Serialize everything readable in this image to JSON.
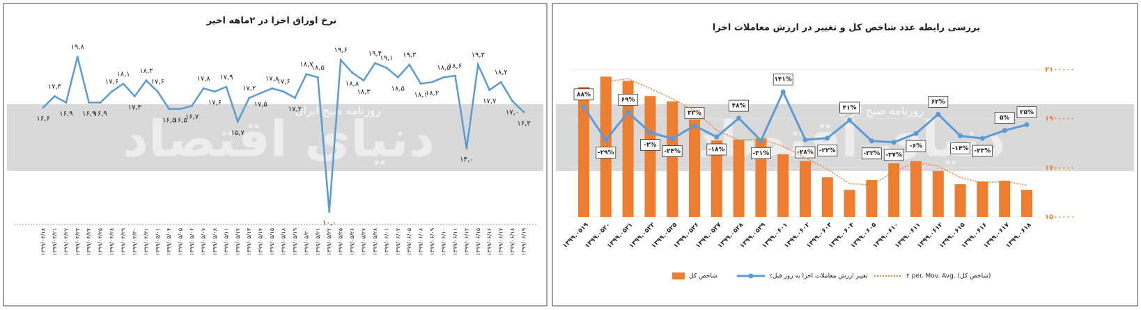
{
  "watermark": {
    "brand": "دنیای اقتصاد",
    "tagline": "روزنامه صبح ایران"
  },
  "chart_data": [
    {
      "type": "line",
      "title": "نرخ اوراق اخزا در ۲ماهه اخیر",
      "categories": [
        "۱۳۹۹/۰۴/۱۸",
        "۱۳۹۹/۰۴/۲۱",
        "۱۳۹۹/۰۴/۲۲",
        "۱۳۹۹/۰۴/۲۳",
        "۱۳۹۹/۰۴/۲۴",
        "۱۳۹۹/۰۴/۲۵",
        "۱۳۹۹/۰۴/۲۸",
        "۱۳۹۹/۰۴/۲۹",
        "۱۳۹۹/۰۴/۳۰",
        "۱۳۹۹/۰۴/۳۱",
        "۱۳۹۹/۰۵/۰۱",
        "۱۳۹۹/۰۵/۰۴",
        "۱۳۹۹/۰۵/۰۵",
        "۱۳۹۹/۰۵/۰۶",
        "۱۳۹۹/۰۵/۰۷",
        "۱۳۹۹/۰۵/۰۸",
        "۱۳۹۹/۰۵/۱۱",
        "۱۳۹۹/۰۵/۱۲",
        "۱۳۹۹/۰۵/۱۳",
        "۱۳۹۹/۰۵/۱۴",
        "۱۳۹۹/۰۵/۱۵",
        "۱۳۹۹/۰۵/۱۸",
        "۱۳۹۹/۰۵/۱۹",
        "۱۳۹۹/۰۵/۲۰",
        "۱۳۹۹/۰۵/۲۱",
        "۱۳۹۹/۰۵/۲۲",
        "۱۳۹۹/۰۵/۲۵",
        "۱۳۹۹/۰۵/۲۶",
        "۱۳۹۹/۰۵/۲۷",
        "۱۳۹۹/۰۵/۲۸",
        "۱۳۹۹/۰۶/۰۱",
        "۱۳۹۹/۰۶/۰۲",
        "۱۳۹۹/۰۶/۰۵",
        "۱۳۹۹/۰۶/۰۸",
        "۱۳۹۹/۰۶/۰۹",
        "۱۳۹۹/۰۶/۱۰",
        "۱۳۹۹/۰۶/۱۱",
        "۱۳۹۹/۰۶/۱۲",
        "۱۳۹۹/۰۶/۱۵",
        "۱۳۹۹/۰۶/۱۶",
        "۱۳۹۹/۰۶/۱۷",
        "۱۳۹۹/۰۶/۱۸",
        "۱۳۹۹/۰۶/۱۹"
      ],
      "values": [
        16.6,
        17.3,
        16.9,
        19.8,
        16.9,
        16.9,
        17.6,
        18.1,
        17.3,
        18.3,
        17.6,
        16.5,
        16.5,
        16.7,
        17.8,
        17.6,
        17.9,
        15.7,
        17.2,
        17.5,
        17.8,
        17.6,
        17.2,
        18.7,
        18.5,
        10.0,
        19.6,
        18.8,
        18.3,
        19.4,
        19.1,
        18.5,
        19.3,
        18.1,
        18.2,
        18.5,
        18.6,
        14.0,
        19.3,
        17.7,
        18.2,
        17.0,
        16.3
      ],
      "value_labels": [
        "۱۶,۶",
        "۱۷,۳",
        "۱۶,۹",
        "۱۹,۸",
        "۱۶,۹",
        "۱۶,۹",
        "۱۷,۶",
        "۱۸,۱",
        "۱۷,۳",
        "۱۸,۳",
        "۱۷,۶",
        "۱۶,۵",
        "۱۶,۵",
        "۱۶,۷",
        "۱۷,۸",
        "۱۷,۶",
        "۱۷,۹",
        "۱۵,۷",
        "۱۷,۲",
        "۱۷,۵",
        "۱۷,۸",
        "۱۷,۶",
        "۱۷,۲",
        "۱۸,۷",
        "۱۸,۵",
        "۱۰,۰",
        "۱۹,۶",
        "۱۸,۸",
        "۱۸,۳",
        "۱۹,۴",
        "۱۹,۱",
        "۱۸,۵",
        "۱۹,۳",
        "۱۸,۱",
        "۱۸,۲",
        "۱۸,۵",
        "۱۸,۶",
        "۱۴,۰",
        "۱۹,۳",
        "۱۷,۷",
        "۱۸,۲",
        "۱۷,۰",
        "۱۶,۳"
      ],
      "color": "#5b9bd5",
      "ylim": [
        9.5,
        21.5
      ]
    },
    {
      "type": "bar",
      "title": "بررسی رابطه عدد شاخص کل و تغییر در ارزش معاملات اخزا",
      "categories": [
        "۱۳۹۹.۰۵۱۹",
        "۱۳۹۹.۰۵۲۰",
        "۱۳۹۹.۰۵۲۱",
        "۱۳۹۹.۰۵۲۲",
        "۱۳۹۹.۰۵۲۵",
        "۱۳۹۹.۰۵۲۶",
        "۱۳۹۹.۰۵۲۷",
        "۱۳۹۹.۰۵۲۸",
        "۱۳۹۹.۰۵۲۹",
        "۱۳۹۹.۰۶۰۱",
        "۱۳۹۹.۰۶۰۲",
        "۱۳۹۹.۰۶۰۳",
        "۱۳۹۹.۰۶۰۴",
        "۱۳۹۹.۰۶۰۵",
        "۱۳۹۹.۰۶۱۰",
        "۱۳۹۹.۰۶۱۱",
        "۱۳۹۹.۰۶۱۲",
        "۱۳۹۹.۰۶۱۵",
        "۱۳۹۹.۰۶۱۶",
        "۱۳۹۹.۰۶۱۷",
        "۱۳۹۹.۰۶۱۸"
      ],
      "series": [
        {
          "name": "شاخص کل",
          "type": "bar",
          "color": "#ed7d31",
          "values": [
            2029000,
            2071000,
            2054000,
            1992000,
            1970000,
            1896000,
            1811000,
            1814000,
            1820000,
            1755000,
            1727000,
            1661000,
            1610000,
            1650000,
            1718000,
            1727000,
            1687000,
            1633000,
            1644000,
            1647000,
            1610000
          ]
        },
        {
          "name": "٪تغییر ارزش معاملات اخزا به روز قبل",
          "type": "line",
          "color": "#5b9bd5",
          "axis": "y2",
          "values": [
            88,
            -29,
            69,
            -2,
            -24,
            22,
            -18,
            48,
            -31,
            141,
            -28,
            -22,
            41,
            -32,
            -37,
            -6,
            62,
            -14,
            -23,
            5,
            25
          ],
          "value_labels": [
            "۸۸%",
            "-۲۹%",
            "۶۹%",
            "-۲%",
            "-۲۴%",
            "۲۲%",
            "-۱۸%",
            "۴۸%",
            "-۳۱%",
            "۱۴۱%",
            "-۲۸%",
            "-۲۲%",
            "۴۱%",
            "-۳۲%",
            "-۳۷%",
            "-۶%",
            "۶۲%",
            "-۱۴%",
            "-۲۳%",
            "۵%",
            "۲۵%"
          ]
        },
        {
          "name": "۲ per. Mov. Avg. (شاخص کل)",
          "type": "line",
          "dash": true,
          "color": "#ed7d31",
          "values": [
            null,
            2050000,
            2062500,
            2023000,
            1981000,
            1933000,
            1853500,
            1812500,
            1817000,
            1787500,
            1741000,
            1694000,
            1635500,
            1630000,
            1684000,
            1722500,
            1707000,
            1660000,
            1638500,
            1645500,
            1628500
          ]
        }
      ],
      "ylim": [
        1500000,
        2100000
      ],
      "yticks": [
        {
          "value": 1500000,
          "label": "۱۵۰۰۰۰۰"
        },
        {
          "value": 1700000,
          "label": "۱۷۰۰۰۰۰"
        },
        {
          "value": 1900000,
          "label": "۱۹۰۰۰۰۰"
        },
        {
          "value": 2100000,
          "label": "۲۱۰۰۰۰۰"
        }
      ],
      "y2lim": [
        -300,
        220
      ],
      "grid": true,
      "legend": "bottom"
    }
  ]
}
